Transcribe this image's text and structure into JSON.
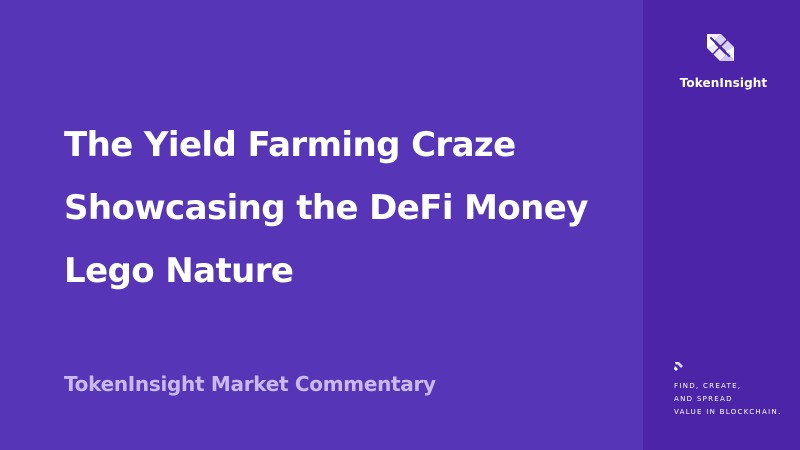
{
  "slide": {
    "title_lines": [
      "The Yield Farming Craze",
      "Showcasing the DeFi Money",
      "Lego Nature"
    ],
    "subtitle": "TokenInsight Market Commentary"
  },
  "sidebar": {
    "logo_icon": "tokeninsight-logo-icon",
    "brand_name": "TokenInsight",
    "tagline_icon": "tokeninsight-small-logo-icon",
    "tagline_lines": [
      "FIND, CREATE,",
      "AND SPREAD",
      "VALUE IN BLOCKCHAIN."
    ]
  },
  "colors": {
    "main_background": "#5636b6",
    "side_background": "#4b24a7",
    "title": "#ffffff",
    "subtitle": "#c9b9ee"
  }
}
